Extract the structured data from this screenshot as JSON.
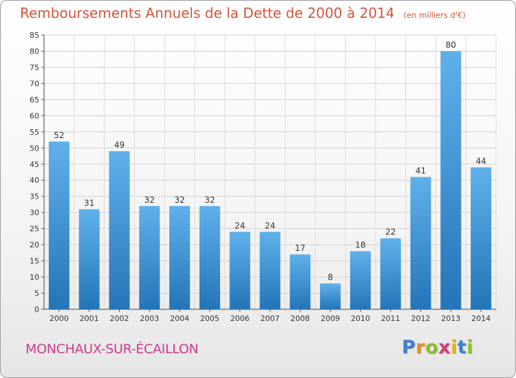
{
  "chart_data": {
    "type": "bar",
    "title": "Remboursements Annuels de la Dette de 2000 à 2014",
    "subtitle": "(en milliers d'€)",
    "categories": [
      "2000",
      "2001",
      "2002",
      "2003",
      "2004",
      "2005",
      "2006",
      "2007",
      "2008",
      "2009",
      "2010",
      "2011",
      "2012",
      "2013",
      "2014"
    ],
    "values": [
      52,
      31,
      49,
      32,
      32,
      32,
      24,
      24,
      17,
      8,
      18,
      22,
      41,
      80,
      44
    ],
    "ylim": [
      0,
      85
    ],
    "yticks": [
      0,
      5,
      10,
      15,
      20,
      25,
      30,
      35,
      40,
      45,
      50,
      55,
      60,
      65,
      70,
      75,
      80,
      85
    ],
    "grid": true,
    "bar_color": "#3a93d8",
    "xlabel": "",
    "ylabel": ""
  },
  "location": "MONCHAUX-SUR-ÉCAILLON",
  "brand": {
    "letters": [
      "P",
      "r",
      "o",
      "x",
      "i",
      "t",
      "i"
    ],
    "colors": [
      "#3b7fd0",
      "#e88a1a",
      "#8cbf2a",
      "#d43a7a",
      "#e8b31a",
      "#3b7fd0",
      "#8cbf2a"
    ]
  },
  "colors": {
    "title": "#d2553a",
    "location": "#cc3b8c"
  }
}
